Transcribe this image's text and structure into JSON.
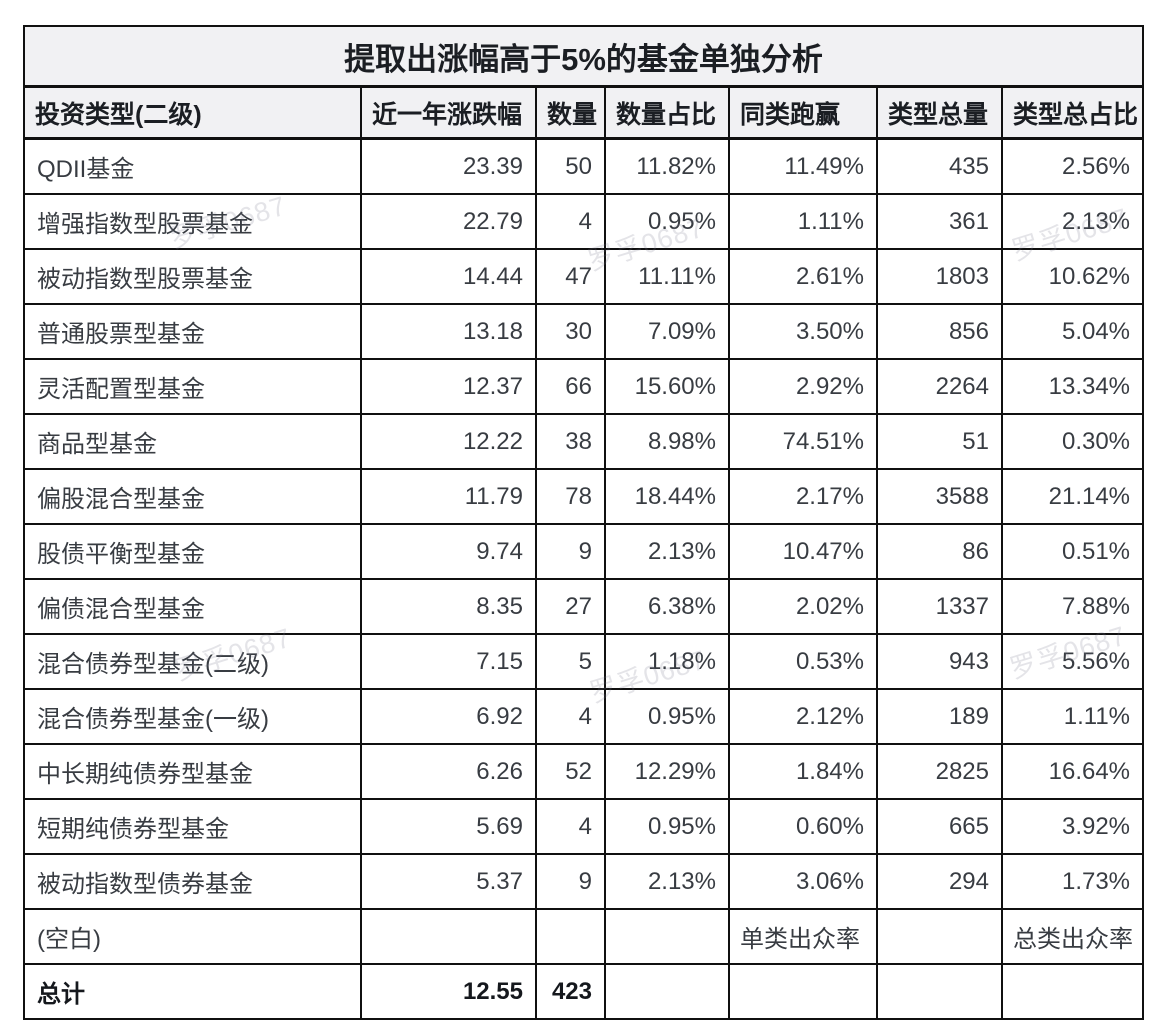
{
  "watermark": {
    "text": "罗孚0687"
  },
  "chart_data": {
    "type": "table",
    "title": "提取出涨幅高于5%的基金单独分析",
    "columns": [
      "投资类型(二级)",
      "近一年涨跌幅",
      "数量",
      "数量占比",
      "同类跑赢",
      "类型总量",
      "类型总占比"
    ],
    "rows": [
      [
        "QDII基金",
        "23.39",
        "50",
        "11.82%",
        "11.49%",
        "435",
        "2.56%"
      ],
      [
        "增强指数型股票基金",
        "22.79",
        "4",
        "0.95%",
        "1.11%",
        "361",
        "2.13%"
      ],
      [
        "被动指数型股票基金",
        "14.44",
        "47",
        "11.11%",
        "2.61%",
        "1803",
        "10.62%"
      ],
      [
        "普通股票型基金",
        "13.18",
        "30",
        "7.09%",
        "3.50%",
        "856",
        "5.04%"
      ],
      [
        "灵活配置型基金",
        "12.37",
        "66",
        "15.60%",
        "2.92%",
        "2264",
        "13.34%"
      ],
      [
        "商品型基金",
        "12.22",
        "38",
        "8.98%",
        "74.51%",
        "51",
        "0.30%"
      ],
      [
        "偏股混合型基金",
        "11.79",
        "78",
        "18.44%",
        "2.17%",
        "3588",
        "21.14%"
      ],
      [
        "股债平衡型基金",
        "9.74",
        "9",
        "2.13%",
        "10.47%",
        "86",
        "0.51%"
      ],
      [
        "偏债混合型基金",
        "8.35",
        "27",
        "6.38%",
        "2.02%",
        "1337",
        "7.88%"
      ],
      [
        "混合债券型基金(二级)",
        "7.15",
        "5",
        "1.18%",
        "0.53%",
        "943",
        "5.56%"
      ],
      [
        "混合债券型基金(一级)",
        "6.92",
        "4",
        "0.95%",
        "2.12%",
        "189",
        "1.11%"
      ],
      [
        "中长期纯债券型基金",
        "6.26",
        "52",
        "12.29%",
        "1.84%",
        "2825",
        "16.64%"
      ],
      [
        "短期纯债券型基金",
        "5.69",
        "4",
        "0.95%",
        "0.60%",
        "665",
        "3.92%"
      ],
      [
        "被动指数型债券基金",
        "5.37",
        "9",
        "2.13%",
        "3.06%",
        "294",
        "1.73%"
      ]
    ],
    "blank_row": {
      "label": "(空白)",
      "peer_note": "单类出众率",
      "total_note": "总类出众率"
    },
    "total_row": {
      "label": "总计",
      "change": "12.55",
      "count": "423"
    },
    "layout_hints": {
      "grid": "on",
      "title_position": "top-center"
    }
  },
  "colors": {
    "header_bg": "#f1f1f3",
    "border": "#101010",
    "text": "#383c42",
    "strong_text": "#1b1e23"
  }
}
